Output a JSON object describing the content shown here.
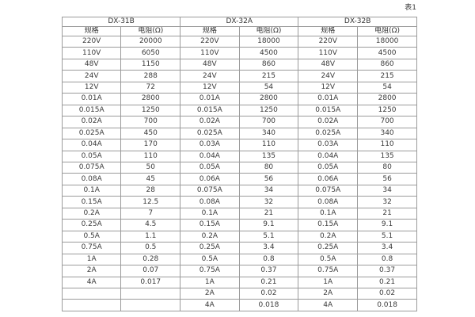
{
  "page": {
    "caption": "表1"
  },
  "table": {
    "groups": [
      {
        "title": "DX-31B",
        "spec_header": "规格",
        "resistance_header": "电阻(Ω)",
        "rows": [
          [
            "220V",
            "20000"
          ],
          [
            "110V",
            "6050"
          ],
          [
            "48V",
            "1150"
          ],
          [
            "24V",
            "288"
          ],
          [
            "12V",
            "72"
          ],
          [
            "0.01A",
            "2800"
          ],
          [
            "0.015A",
            "1250"
          ],
          [
            "0.02A",
            "700"
          ],
          [
            "0.025A",
            "450"
          ],
          [
            "0.04A",
            "170"
          ],
          [
            "0.05A",
            "110"
          ],
          [
            "0.075A",
            "50"
          ],
          [
            "0.08A",
            "45"
          ],
          [
            "0.1A",
            "28"
          ],
          [
            "0.15A",
            "12.5"
          ],
          [
            "0.2A",
            "7"
          ],
          [
            "0.25A",
            "4.5"
          ],
          [
            "0.5A",
            "1.1"
          ],
          [
            "0.75A",
            "0.5"
          ],
          [
            "1A",
            "0.28"
          ],
          [
            "2A",
            "0.07"
          ],
          [
            "4A",
            "0.017"
          ],
          [
            "",
            ""
          ],
          [
            "",
            ""
          ]
        ]
      },
      {
        "title": "DX-32A",
        "spec_header": "规格",
        "resistance_header": "电阻(Ω)",
        "rows": [
          [
            "220V",
            "18000"
          ],
          [
            "110V",
            "4500"
          ],
          [
            "48V",
            "860"
          ],
          [
            "24V",
            "215"
          ],
          [
            "12V",
            "54"
          ],
          [
            "0.01A",
            "2800"
          ],
          [
            "0.015A",
            "1250"
          ],
          [
            "0.02A",
            "700"
          ],
          [
            "0.025A",
            "340"
          ],
          [
            "0.03A",
            "110"
          ],
          [
            "0.04A",
            "135"
          ],
          [
            "0.05A",
            "80"
          ],
          [
            "0.06A",
            "56"
          ],
          [
            "0.075A",
            "34"
          ],
          [
            "0.08A",
            "32"
          ],
          [
            "0.1A",
            "21"
          ],
          [
            "0.15A",
            "9.1"
          ],
          [
            "0.2A",
            "5.1"
          ],
          [
            "0.25A",
            "3.4"
          ],
          [
            "0.5A",
            "0.8"
          ],
          [
            "0.75A",
            "0.37"
          ],
          [
            "1A",
            "0.21"
          ],
          [
            "2A",
            "0.02"
          ],
          [
            "4A",
            "0.018"
          ]
        ]
      },
      {
        "title": "DX-32B",
        "spec_header": "规格",
        "resistance_header": "电阻(Ω)",
        "rows": [
          [
            "220V",
            "18000"
          ],
          [
            "110V",
            "4500"
          ],
          [
            "48V",
            "860"
          ],
          [
            "24V",
            "215"
          ],
          [
            "12V",
            "54"
          ],
          [
            "0.01A",
            "2800"
          ],
          [
            "0.015A",
            "1250"
          ],
          [
            "0.02A",
            "700"
          ],
          [
            "0.025A",
            "340"
          ],
          [
            "0.03A",
            "110"
          ],
          [
            "0.04A",
            "135"
          ],
          [
            "0.05A",
            "80"
          ],
          [
            "0.06A",
            "56"
          ],
          [
            "0.075A",
            "34"
          ],
          [
            "0.08A",
            "32"
          ],
          [
            "0.1A",
            "21"
          ],
          [
            "0.15A",
            "9.1"
          ],
          [
            "0.2A",
            "5.1"
          ],
          [
            "0.25A",
            "3.4"
          ],
          [
            "0.5A",
            "0.8"
          ],
          [
            "0.75A",
            "0.37"
          ],
          [
            "1A",
            "0.21"
          ],
          [
            "2A",
            "0.02"
          ],
          [
            "4A",
            "0.018"
          ]
        ]
      }
    ]
  }
}
